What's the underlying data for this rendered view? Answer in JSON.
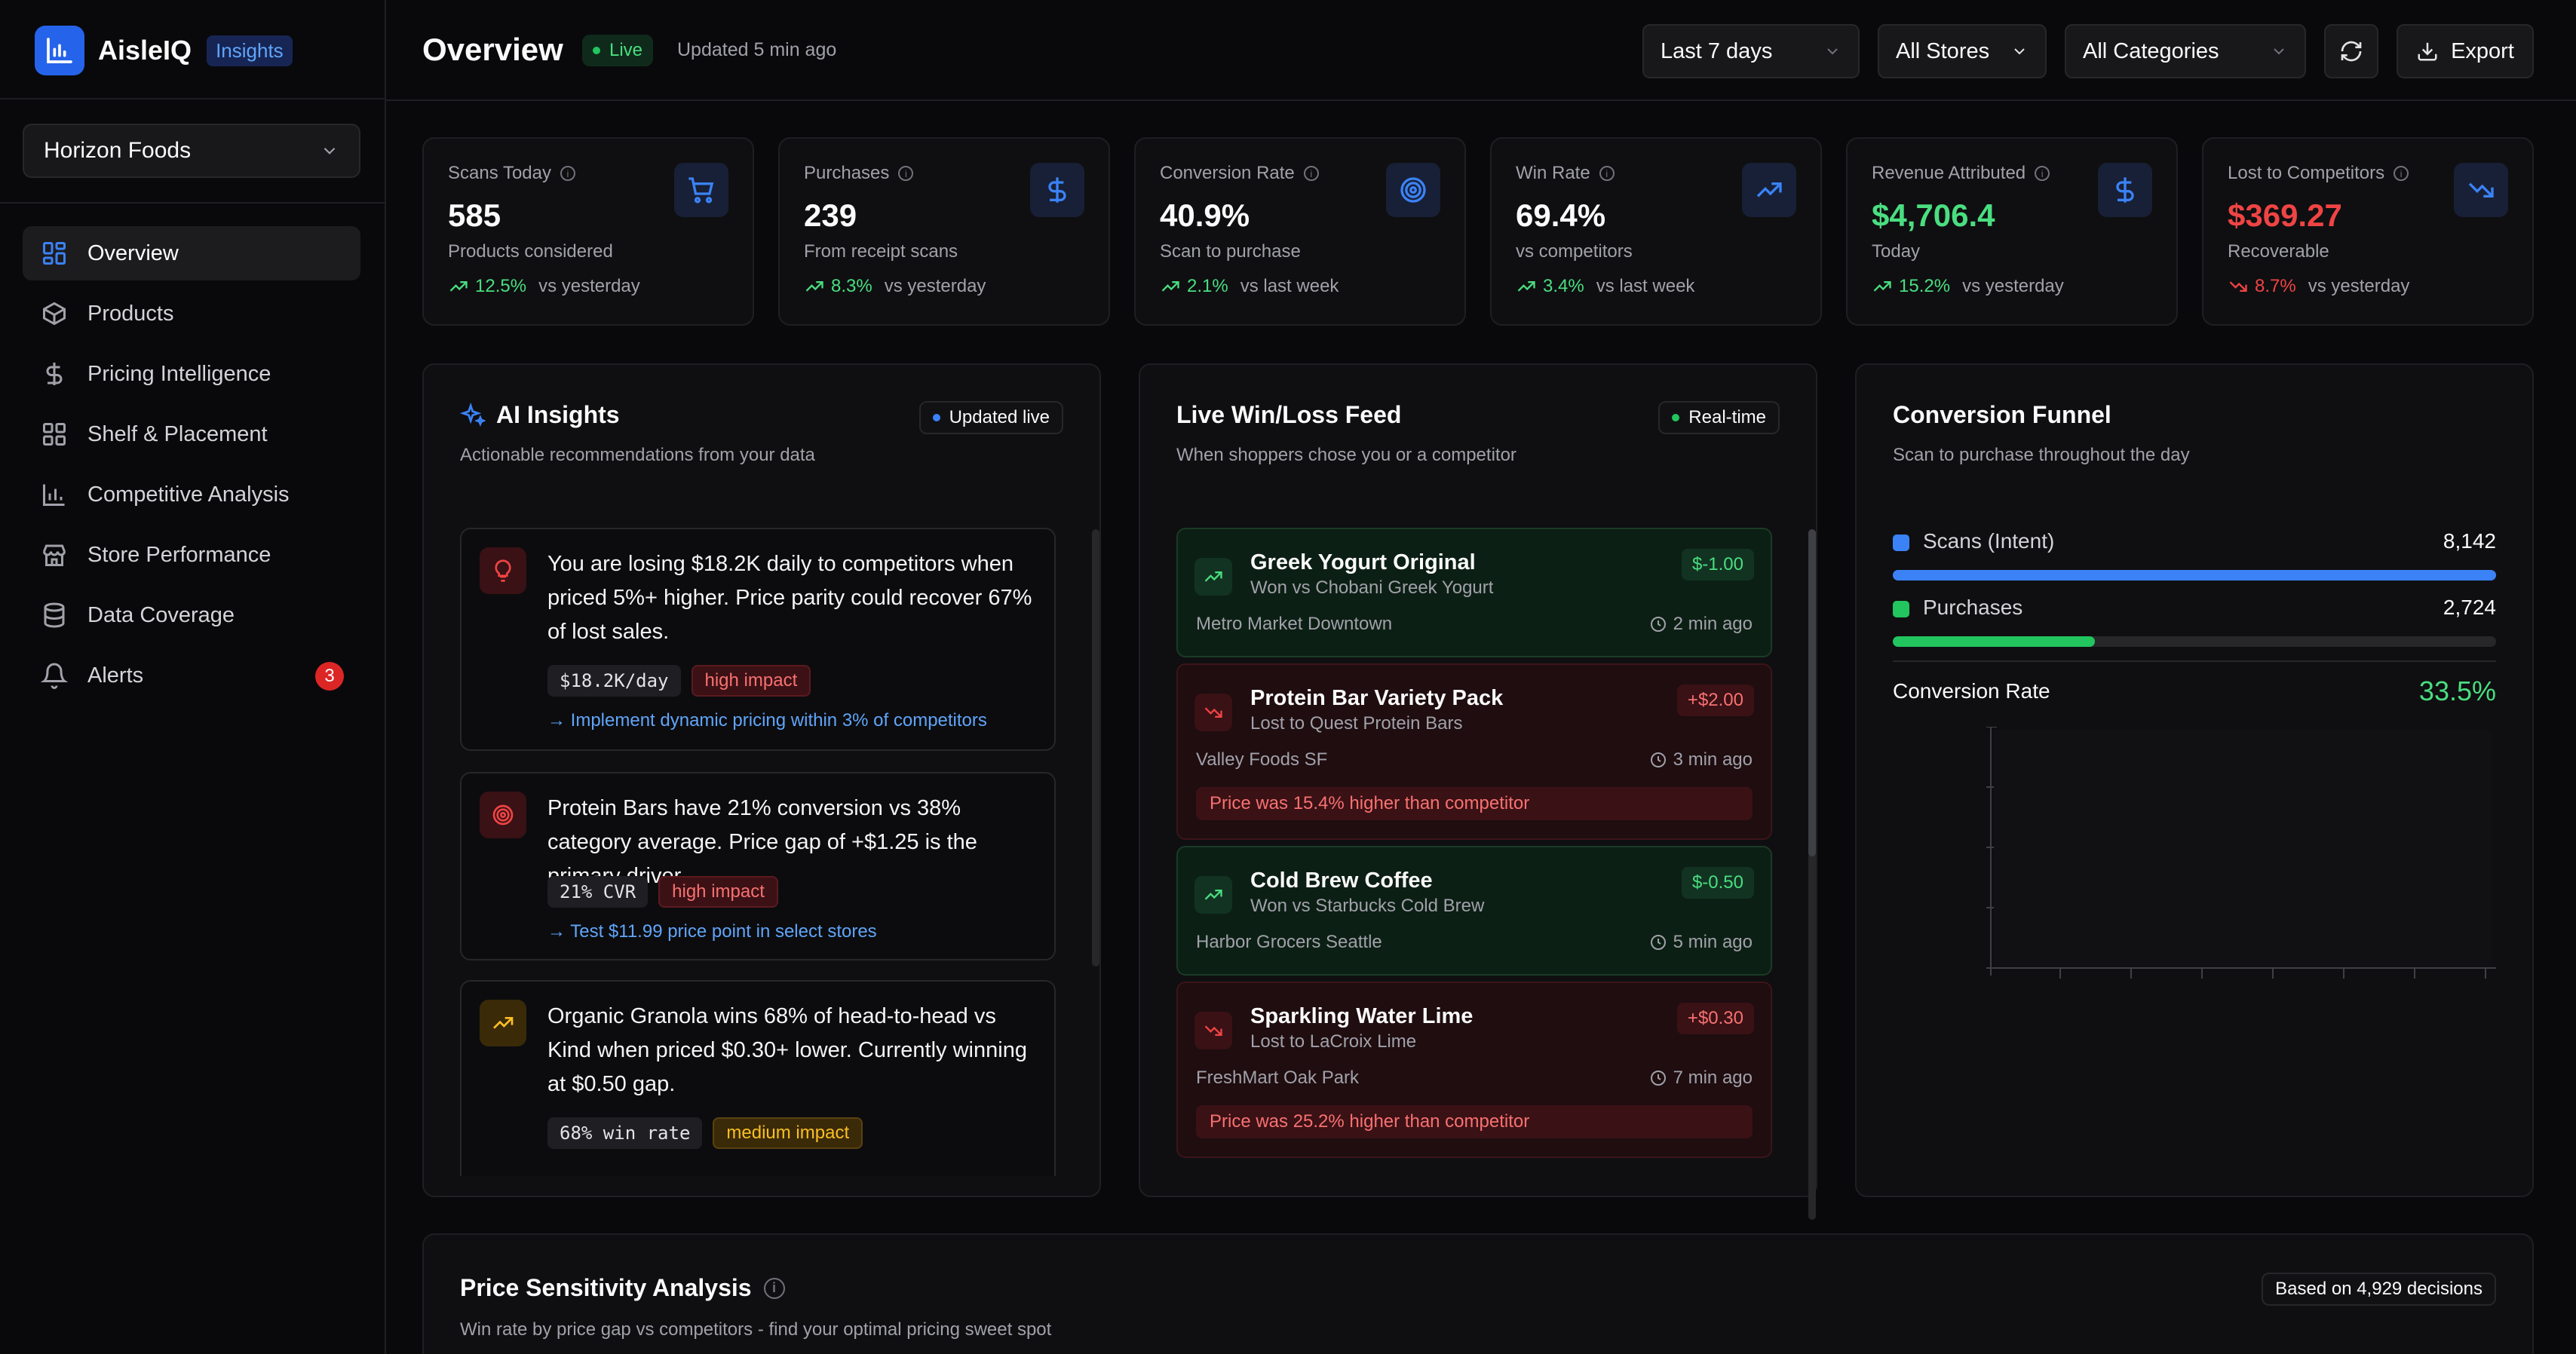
{
  "brand": {
    "name": "AisleIQ",
    "badge": "Insights"
  },
  "org": {
    "name": "Horizon Foods"
  },
  "nav": {
    "items": [
      {
        "label": "Overview",
        "icon": "grid-icon",
        "active": true
      },
      {
        "label": "Products",
        "icon": "box-icon"
      },
      {
        "label": "Pricing Intelligence",
        "icon": "dollar-icon"
      },
      {
        "label": "Shelf & Placement",
        "icon": "layout-icon"
      },
      {
        "label": "Competitive Analysis",
        "icon": "bar-chart-icon"
      },
      {
        "label": "Store Performance",
        "icon": "store-icon"
      },
      {
        "label": "Data Coverage",
        "icon": "database-icon"
      },
      {
        "label": "Alerts",
        "icon": "bell-icon",
        "badge": "3"
      }
    ]
  },
  "header": {
    "title": "Overview",
    "live": "Live",
    "updated": "Updated 5 min ago",
    "range": "Last 7 days",
    "stores": "All Stores",
    "categories": "All Categories",
    "export": "Export"
  },
  "metrics": [
    {
      "label": "Scans Today",
      "value": "585",
      "sub": "Products considered",
      "change": "12.5%",
      "compare": "vs yesterday",
      "icon": "cart-icon",
      "trend": "up"
    },
    {
      "label": "Purchases",
      "value": "239",
      "sub": "From receipt scans",
      "change": "8.3%",
      "compare": "vs yesterday",
      "icon": "dollar-icon",
      "trend": "up"
    },
    {
      "label": "Conversion Rate",
      "value": "40.9%",
      "sub": "Scan to purchase",
      "change": "2.1%",
      "compare": "vs last week",
      "icon": "target-icon",
      "trend": "up"
    },
    {
      "label": "Win Rate",
      "value": "69.4%",
      "sub": "vs competitors",
      "change": "3.4%",
      "compare": "vs last week",
      "icon": "trending-up-icon",
      "trend": "up"
    },
    {
      "label": "Revenue Attributed",
      "value": "$4,706.4",
      "sub": "Today",
      "change": "15.2%",
      "compare": "vs yesterday",
      "icon": "dollar-icon",
      "trend": "up",
      "value_color": "#4ade80"
    },
    {
      "label": "Lost to Competitors",
      "value": "$369.27",
      "sub": "Recoverable",
      "change": "8.7%",
      "compare": "vs yesterday",
      "icon": "trending-down-icon",
      "trend": "down",
      "value_color": "#ef4444"
    }
  ],
  "ai_insights": {
    "title": "AI Insights",
    "subtitle": "Actionable recommendations from your data",
    "status": "Updated live",
    "items": [
      {
        "text": "You are losing $18.2K daily to competitors when priced 5%+ higher. Price parity could recover 67% of lost sales.",
        "metric": "$18.2K/day",
        "impact": "high impact",
        "action": "Implement dynamic pricing within 3% of competitors"
      },
      {
        "text": "Protein Bars have 21% conversion vs 38% category average. Price gap of +$1.25 is the primary driver.",
        "metric": "21% CVR",
        "impact": "high impact",
        "action": "Test $11.99 price point in select stores"
      },
      {
        "text": "Organic Granola wins 68% of head-to-head vs Kind when priced $0.30+ lower. Currently winning at $0.50 gap.",
        "metric": "68% win rate",
        "impact": "medium impact"
      }
    ]
  },
  "feed": {
    "title": "Live Win/Loss Feed",
    "subtitle": "When shoppers chose you or a competitor",
    "status": "Real-time",
    "items": [
      {
        "product": "Greek Yogurt Original",
        "opponent": "Won vs Chobani Greek Yogurt",
        "delta": "$-1.00",
        "store": "Metro Market Downtown",
        "time": "2 min ago",
        "result": "win"
      },
      {
        "product": "Protein Bar Variety Pack",
        "opponent": "Lost to Quest Protein Bars",
        "delta": "+$2.00",
        "store": "Valley Foods SF",
        "time": "3 min ago",
        "result": "loss",
        "note": "Price was 15.4% higher than competitor"
      },
      {
        "product": "Cold Brew Coffee",
        "opponent": "Won vs Starbucks Cold Brew",
        "delta": "$-0.50",
        "store": "Harbor Grocers Seattle",
        "time": "5 min ago",
        "result": "win"
      },
      {
        "product": "Sparkling Water Lime",
        "opponent": "Lost to LaCroix Lime",
        "delta": "+$0.30",
        "store": "FreshMart Oak Park",
        "time": "7 min ago",
        "result": "loss",
        "note": "Price was 25.2% higher than competitor"
      }
    ]
  },
  "funnel": {
    "title": "Conversion Funnel",
    "subtitle": "Scan to purchase throughout the day",
    "scans_label": "Scans (Intent)",
    "scans_value": "8,142",
    "scans_fraction": 1.0,
    "purchases_label": "Purchases",
    "purchases_value": "2,724",
    "purchases_fraction": 0.335,
    "rate_label": "Conversion Rate",
    "rate_value": "33.5%",
    "colors": {
      "scans": "#3b82f6",
      "purchases": "#22c55e"
    }
  },
  "price_sensitivity": {
    "title": "Price Sensitivity Analysis",
    "subtitle": "Win rate by price gap vs competitors - find your optimal pricing sweet spot",
    "badge": "Based on 4,929 decisions"
  }
}
